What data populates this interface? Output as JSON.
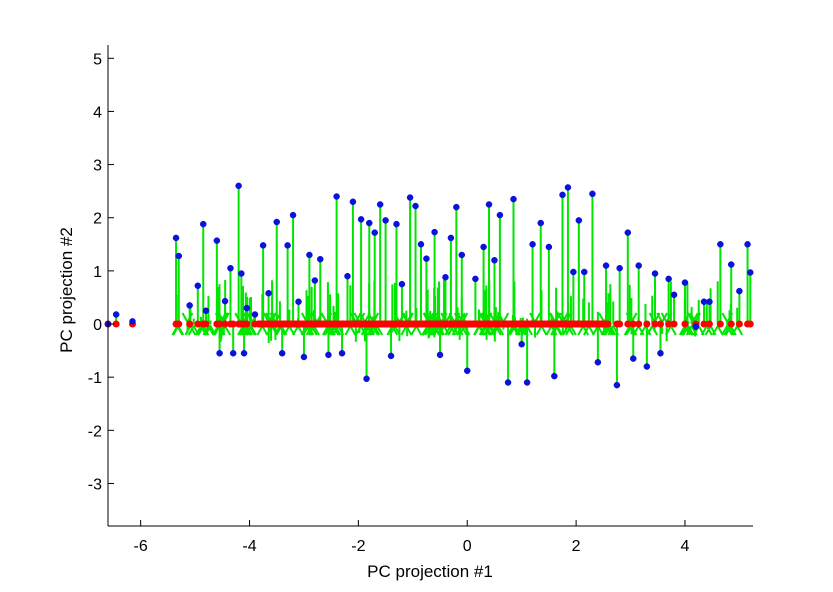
{
  "chart_data": {
    "type": "scatter",
    "title": "",
    "xlabel": "PC projection #1",
    "ylabel": "PC projection #2",
    "xlim": [
      -6.6,
      5.25
    ],
    "ylim": [
      -3.8,
      5.25
    ],
    "xticks": [
      -6,
      -4,
      -2,
      0,
      2,
      4
    ],
    "yticks": [
      -3,
      -2,
      -1,
      0,
      1,
      2,
      3,
      4,
      5
    ],
    "xtick_labels": [
      "-6",
      "-4",
      "-2",
      "0",
      "2",
      "4"
    ],
    "ytick_labels": [
      "-3",
      "-2",
      "-1",
      "0",
      "1",
      "2",
      "3",
      "4",
      "5"
    ],
    "grid": false,
    "legend": "none",
    "colors": {
      "original_points": "#0a14d2",
      "projected_points": "#ff0000",
      "connector_lines": "#00e600",
      "axes": "#000000"
    },
    "series": [
      {
        "marker": "circle-blue",
        "x": [
          -6.6,
          -6.45,
          -6.15,
          -5.35,
          -5.3,
          -5.1,
          -4.95,
          -4.85,
          -4.8,
          -4.6,
          -4.55,
          -4.45,
          -4.35,
          -4.3,
          -4.2,
          -4.15,
          -4.1,
          -4.05,
          -3.9,
          -3.75,
          -3.65,
          -3.5,
          -3.4,
          -3.3,
          -3.2,
          -3.1,
          -3.0,
          -2.9,
          -2.8,
          -2.7,
          -2.55,
          -2.4,
          -2.3,
          -2.2,
          -2.1,
          -1.95,
          -1.85,
          -1.8,
          -1.7,
          -1.6,
          -1.5,
          -1.4,
          -1.3,
          -1.2,
          -1.05,
          -0.95,
          -0.85,
          -0.75,
          -0.6,
          -0.5,
          -0.4,
          -0.3,
          -0.2,
          -0.1,
          0.0,
          0.15,
          0.3,
          0.4,
          0.5,
          0.6,
          0.75,
          0.85,
          1.0,
          1.1,
          1.2,
          1.35,
          1.5,
          1.6,
          1.75,
          1.85,
          1.95,
          2.05,
          2.15,
          2.3,
          2.4,
          2.55,
          2.75,
          2.8,
          2.95,
          3.05,
          3.15,
          3.3,
          3.45,
          3.55,
          3.7,
          3.8,
          4.0,
          4.2,
          4.35,
          4.45,
          4.65,
          4.85,
          5.0,
          5.15,
          5.2
        ],
        "y": [
          0.0,
          0.18,
          0.05,
          1.62,
          1.28,
          0.35,
          0.72,
          1.88,
          0.25,
          1.57,
          -0.55,
          0.43,
          1.05,
          -0.55,
          2.6,
          0.95,
          -0.55,
          0.3,
          0.18,
          1.48,
          0.58,
          1.92,
          -0.55,
          1.48,
          2.05,
          0.42,
          -0.62,
          1.3,
          0.82,
          1.22,
          -0.58,
          2.4,
          -0.55,
          0.9,
          2.3,
          1.97,
          -1.03,
          1.9,
          1.72,
          2.25,
          1.95,
          -0.6,
          1.88,
          0.75,
          2.38,
          2.22,
          1.5,
          1.23,
          1.73,
          -0.58,
          0.88,
          1.62,
          2.2,
          1.3,
          -0.88,
          0.85,
          1.45,
          2.25,
          1.2,
          2.05,
          -1.1,
          2.35,
          -0.38,
          -1.1,
          1.5,
          1.9,
          1.45,
          -0.98,
          2.43,
          2.57,
          0.98,
          1.95,
          0.98,
          2.45,
          -0.72,
          1.1,
          -1.15,
          1.05,
          1.72,
          -0.65,
          1.1,
          -0.8,
          0.95,
          -0.55,
          0.85,
          0.55,
          0.78,
          -0.05,
          0.42,
          0.42,
          1.5,
          1.12,
          0.62,
          1.5,
          0.97
        ],
        "proj_x": [
          -6.6,
          -6.45,
          -6.15,
          -5.35,
          -5.3,
          -5.1,
          -4.95,
          -4.85,
          -4.8,
          -4.6,
          -4.55,
          -4.45,
          -4.35,
          -4.3,
          -4.2,
          -4.15,
          -4.1,
          -4.05,
          -3.9,
          -3.75,
          -3.65,
          -3.5,
          -3.4,
          -3.3,
          -3.2,
          -3.1,
          -3.0,
          -2.9,
          -2.8,
          -2.7,
          -2.55,
          -2.4,
          -2.3,
          -2.2,
          -2.1,
          -1.95,
          -1.85,
          -1.8,
          -1.7,
          -1.6,
          -1.5,
          -1.4,
          -1.3,
          -1.2,
          -1.05,
          -0.95,
          -0.85,
          -0.75,
          -0.6,
          -0.5,
          -0.4,
          -0.3,
          -0.2,
          -0.1,
          0.0,
          0.15,
          0.3,
          0.4,
          0.5,
          0.6,
          0.75,
          0.85,
          1.0,
          1.1,
          1.2,
          1.35,
          1.5,
          1.6,
          1.75,
          1.85,
          1.95,
          2.05,
          2.15,
          2.3,
          2.4,
          2.55,
          2.75,
          2.8,
          2.95,
          3.05,
          3.15,
          3.3,
          3.45,
          3.55,
          3.7,
          3.8,
          4.0,
          4.2,
          4.35,
          4.45,
          4.65,
          4.85,
          5.0,
          5.15,
          5.2
        ],
        "proj_y": 0
      }
    ],
    "arrows": {
      "description": "dense green arrow-tipped segments from each point toward the y=0 line",
      "x_start": -5.4,
      "x_end": 5.25,
      "count": 160
    }
  }
}
